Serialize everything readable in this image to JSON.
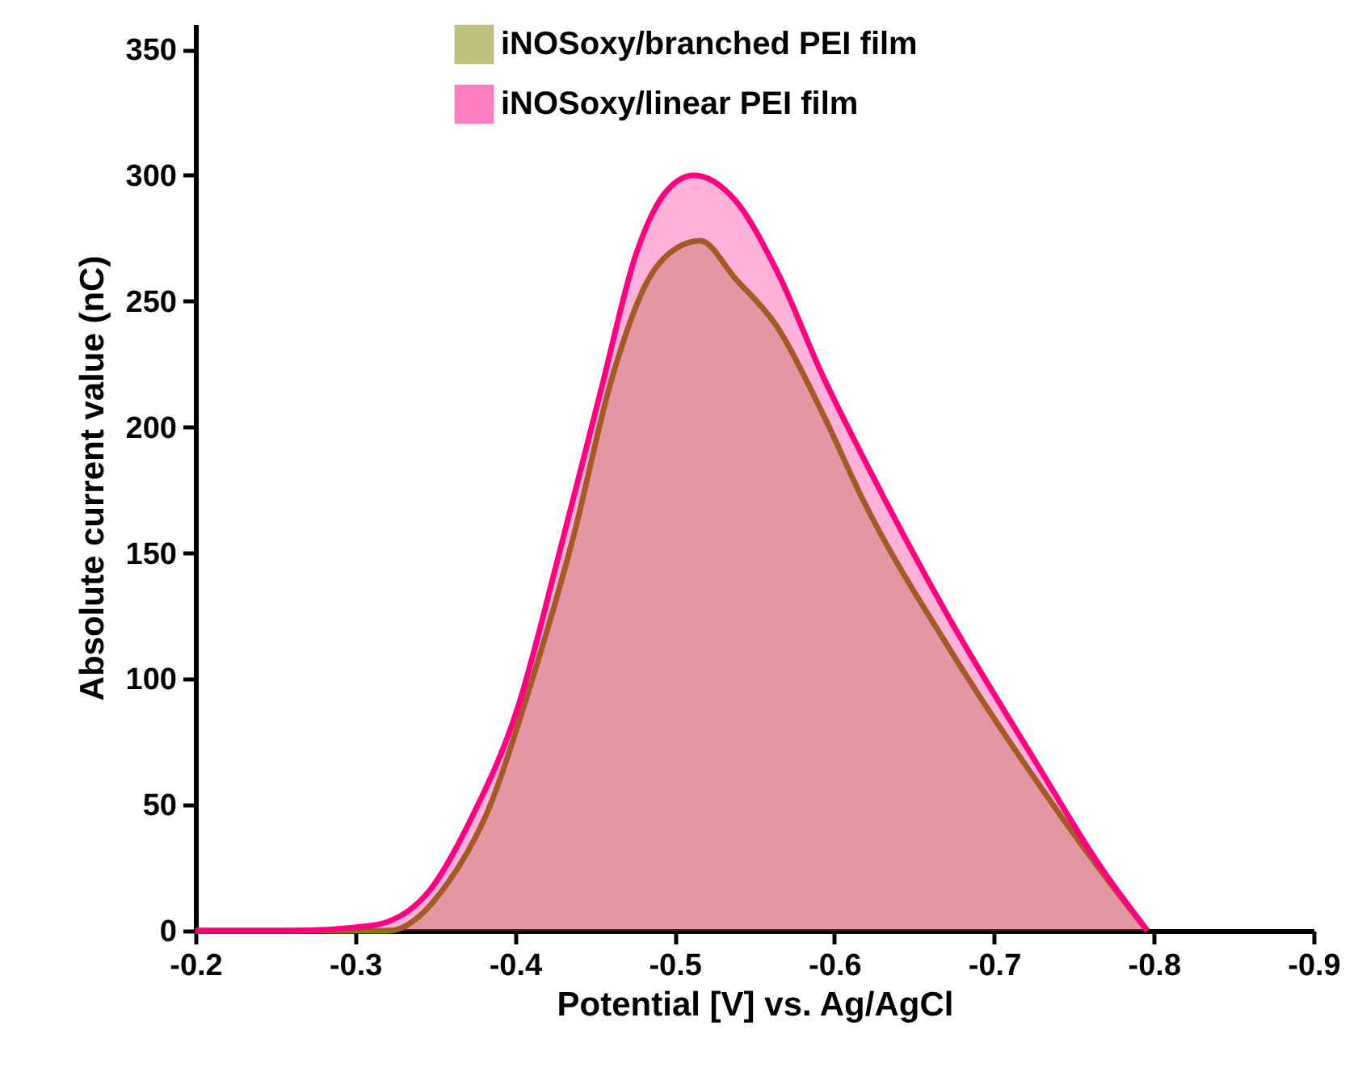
{
  "chart_data": {
    "type": "area",
    "xlabel": "Potential [V] vs. Ag/AgCl",
    "ylabel": "Absolute current value (nC)",
    "xlim": [
      -0.2,
      -0.9
    ],
    "xticks": [
      -0.2,
      -0.3,
      -0.4,
      -0.5,
      -0.6,
      -0.7,
      -0.8,
      -0.9
    ],
    "ylim": [
      0,
      360
    ],
    "yticks": [
      0,
      50,
      100,
      150,
      200,
      250,
      300,
      350
    ],
    "grid": false,
    "legend": "top",
    "series": [
      {
        "name": "iNOSoxy/branched PEI film",
        "color": "#808000",
        "x": [
          -0.2,
          -0.26,
          -0.321,
          -0.358,
          -0.384,
          -0.409,
          -0.436,
          -0.461,
          -0.483,
          -0.501,
          -0.516,
          -0.538,
          -0.564,
          -0.593,
          -0.618,
          -0.672,
          -0.727,
          -0.781,
          -0.796
        ],
        "values": [
          0,
          0,
          0,
          19,
          49,
          96,
          155,
          220,
          258,
          271,
          274,
          259,
          240,
          205,
          171,
          112,
          59,
          12,
          0
        ]
      },
      {
        "name": "iNOSoxy/linear PEI film",
        "color": "#ff0080",
        "x": [
          -0.2,
          -0.26,
          -0.31,
          -0.344,
          -0.373,
          -0.402,
          -0.427,
          -0.454,
          -0.476,
          -0.494,
          -0.512,
          -0.538,
          -0.564,
          -0.593,
          -0.618,
          -0.672,
          -0.727,
          -0.766,
          -0.796
        ],
        "values": [
          0,
          0,
          2,
          14,
          45,
          89,
          148,
          215,
          269,
          293,
          300,
          290,
          262,
          220,
          188,
          124,
          66,
          26,
          0
        ]
      }
    ]
  }
}
